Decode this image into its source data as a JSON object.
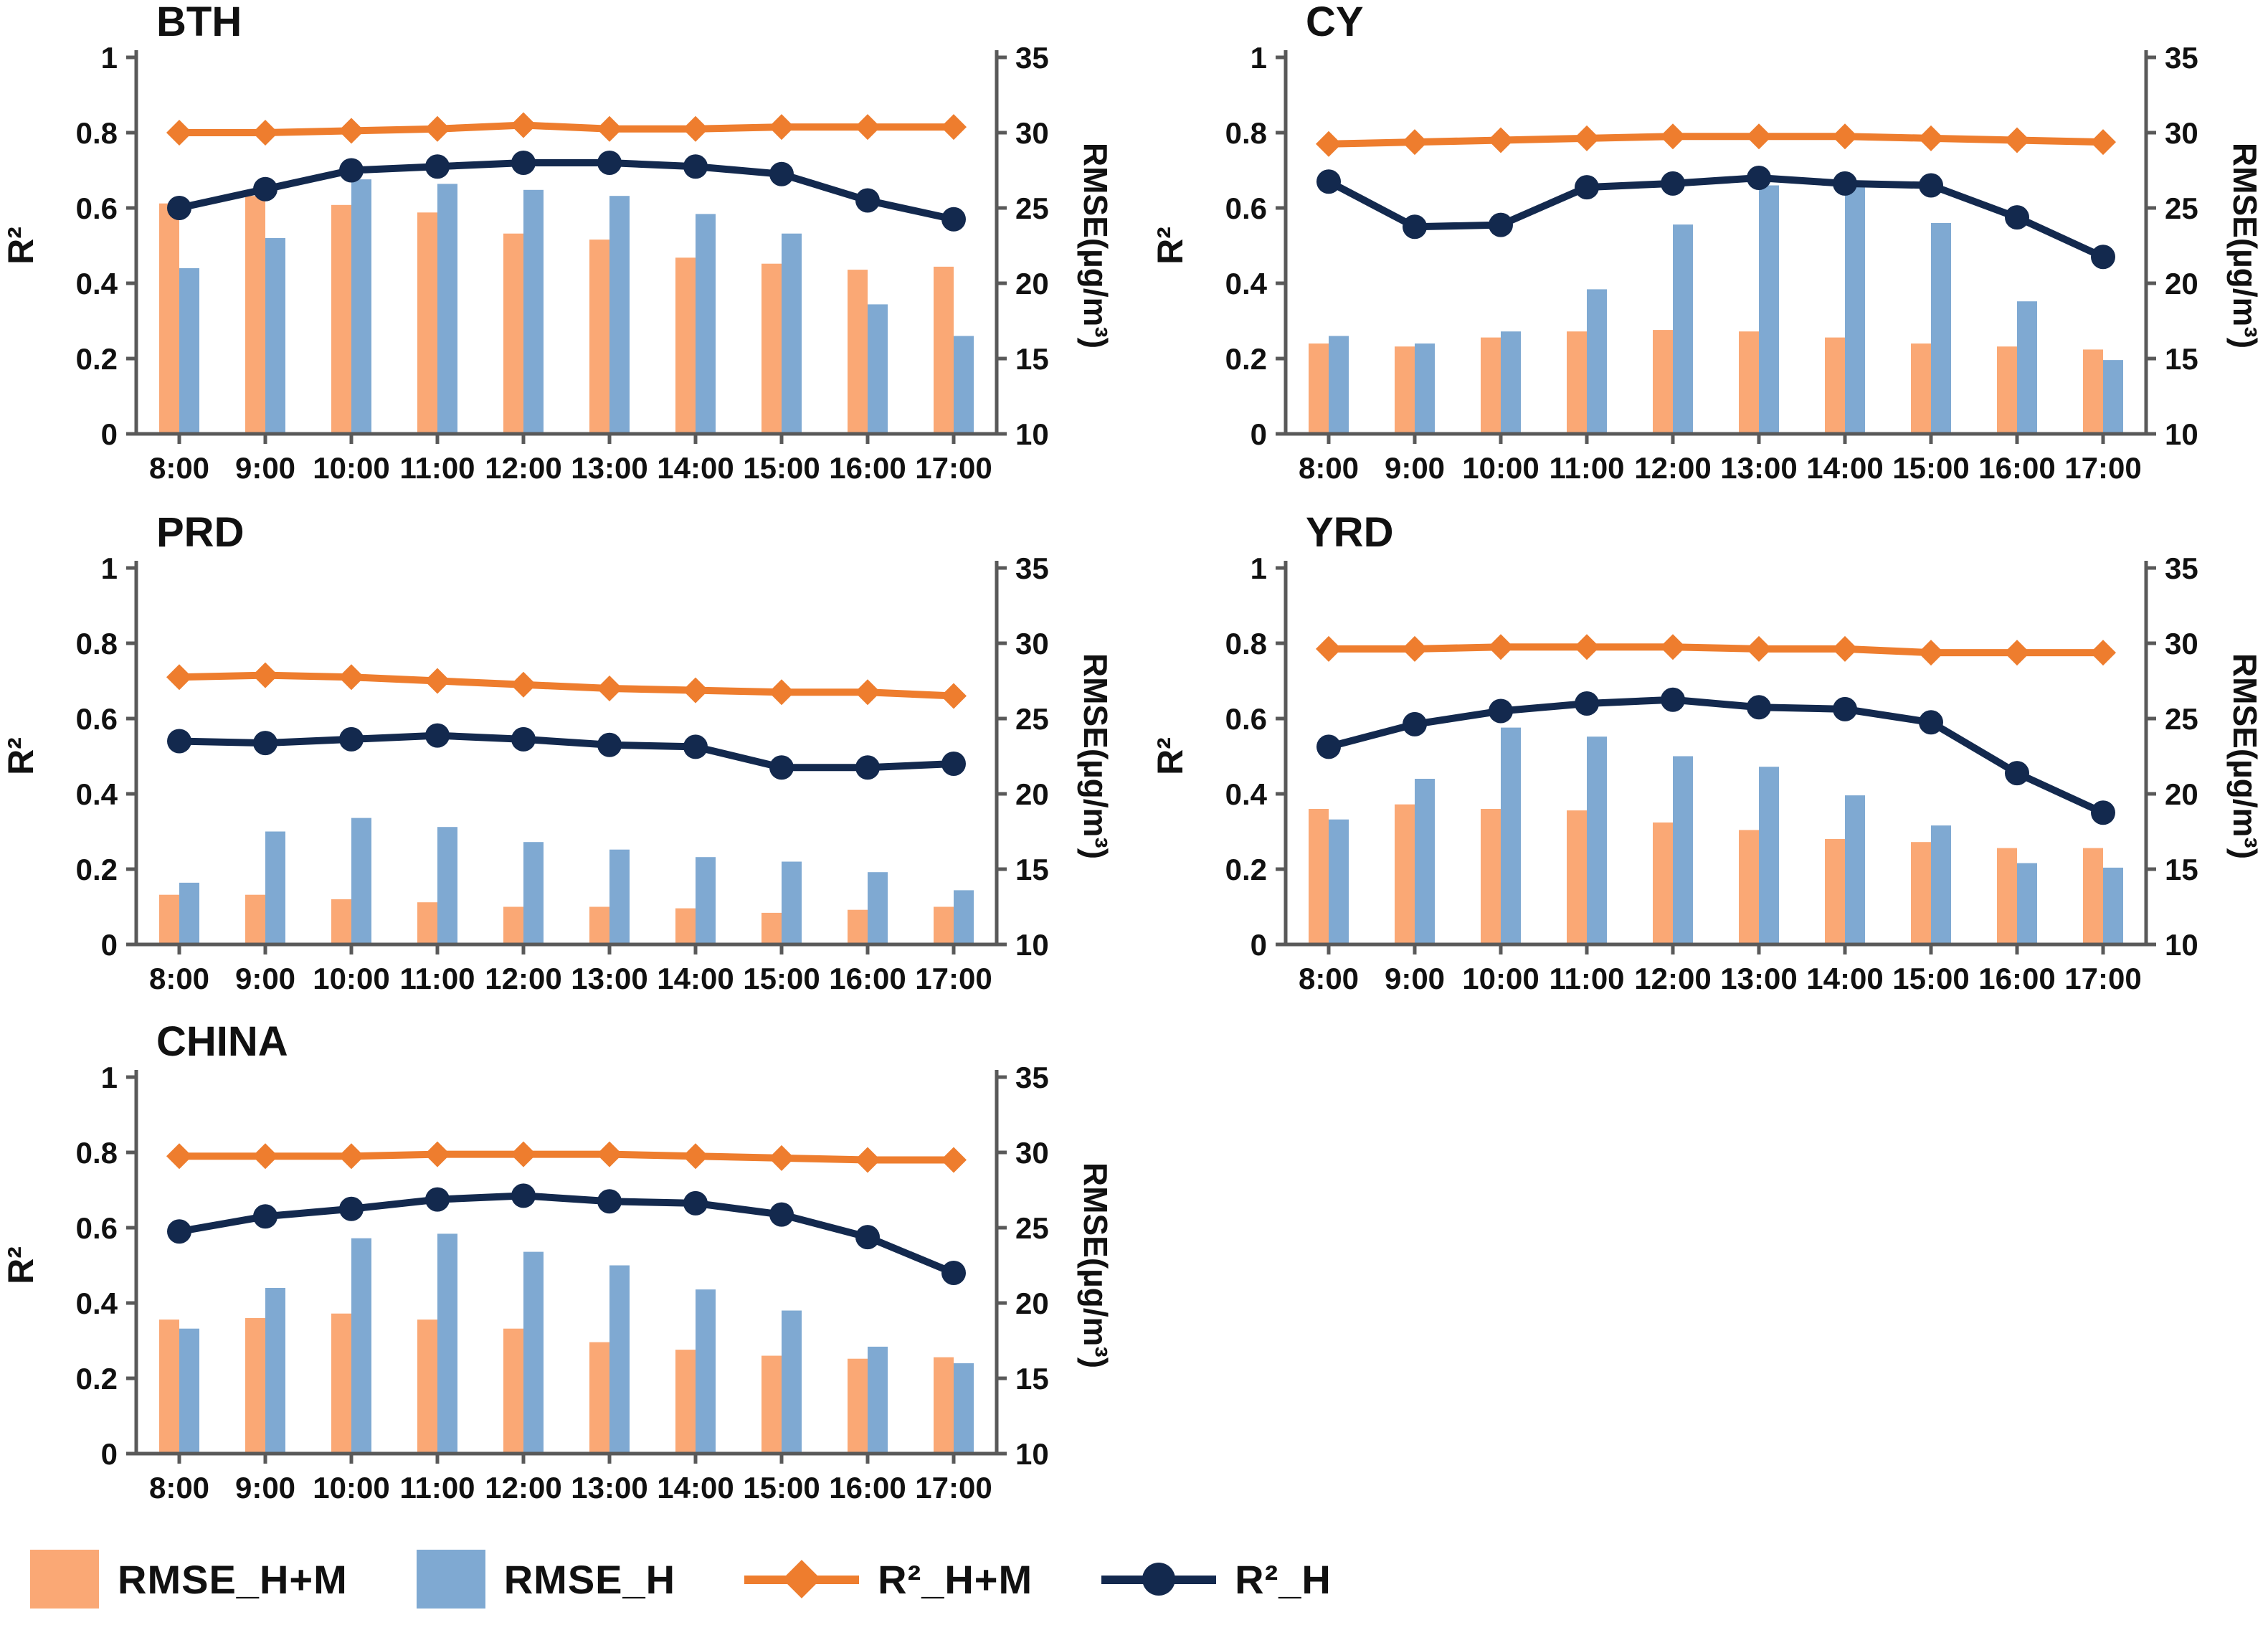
{
  "colors": {
    "rmse_hm": "#FAA875",
    "rmse_h": "#7FA9D2",
    "r2_hm": "#EE7D2E",
    "r2_h": "#13294E",
    "axis": "#595959",
    "text": "#111111"
  },
  "axes": {
    "left_label": "R²",
    "right_label": "RMSE(µg/m³)",
    "left_tick_values": [
      1,
      0.8,
      0.6,
      0.4,
      0.2,
      0
    ],
    "left_tick_labels": [
      "1",
      "0.8",
      "0.6",
      "0.4",
      "0.2",
      "0"
    ],
    "right_tick_values": [
      35,
      30,
      25,
      20,
      15,
      10
    ],
    "right_tick_labels": [
      "35",
      "30",
      "25",
      "20",
      "15",
      "10"
    ],
    "left_range": [
      0,
      1
    ],
    "right_range": [
      10,
      35
    ],
    "categories": [
      "8:00",
      "9:00",
      "10:00",
      "11:00",
      "12:00",
      "13:00",
      "14:00",
      "15:00",
      "16:00",
      "17:00"
    ]
  },
  "legend": {
    "items": [
      {
        "label": "RMSE_H+M",
        "kind": "bar",
        "color_key": "rmse_hm"
      },
      {
        "label": "RMSE_H",
        "kind": "bar",
        "color_key": "rmse_h"
      },
      {
        "label": "R²_H+M",
        "kind": "line-diamond",
        "color_key": "r2_hm"
      },
      {
        "label": "R²_H",
        "kind": "line-circle",
        "color_key": "r2_h"
      }
    ]
  },
  "chart_data": [
    {
      "type": "bar",
      "title": "BTH",
      "xlabel": "",
      "left_axis_label": "R²",
      "right_axis_label": "RMSE(µg/m³)",
      "left_ylim": [
        0,
        1
      ],
      "right_ylim": [
        10,
        35
      ],
      "grid": false,
      "categories": [
        "8:00",
        "9:00",
        "10:00",
        "11:00",
        "12:00",
        "13:00",
        "14:00",
        "15:00",
        "16:00",
        "17:00"
      ],
      "series": [
        {
          "name": "RMSE_H+M",
          "kind": "bar",
          "axis": "right",
          "values": [
            25.3,
            25.8,
            25.2,
            24.7,
            23.3,
            22.9,
            21.7,
            21.3,
            20.9,
            21.1
          ]
        },
        {
          "name": "RMSE_H",
          "kind": "bar",
          "axis": "right",
          "values": [
            21.0,
            23.0,
            26.9,
            26.6,
            26.2,
            25.8,
            24.6,
            23.3,
            18.6,
            16.5
          ]
        },
        {
          "name": "R²_H+M",
          "kind": "line",
          "marker": "diamond",
          "axis": "left",
          "values": [
            0.8,
            0.8,
            0.805,
            0.81,
            0.82,
            0.81,
            0.81,
            0.815,
            0.815,
            0.815
          ]
        },
        {
          "name": "R²_H",
          "kind": "line",
          "marker": "circle",
          "axis": "left",
          "values": [
            0.6,
            0.65,
            0.7,
            0.71,
            0.72,
            0.72,
            0.71,
            0.69,
            0.62,
            0.57
          ]
        }
      ]
    },
    {
      "type": "bar",
      "title": "CY",
      "xlabel": "",
      "left_axis_label": "R²",
      "right_axis_label": "RMSE(µg/m³)",
      "left_ylim": [
        0,
        1
      ],
      "right_ylim": [
        10,
        35
      ],
      "grid": false,
      "categories": [
        "8:00",
        "9:00",
        "10:00",
        "11:00",
        "12:00",
        "13:00",
        "14:00",
        "15:00",
        "16:00",
        "17:00"
      ],
      "series": [
        {
          "name": "RMSE_H+M",
          "kind": "bar",
          "axis": "right",
          "values": [
            16.0,
            15.8,
            16.4,
            16.8,
            16.9,
            16.8,
            16.4,
            16.0,
            15.8,
            15.6
          ]
        },
        {
          "name": "RMSE_H",
          "kind": "bar",
          "axis": "right",
          "values": [
            16.5,
            16.0,
            16.8,
            19.6,
            23.9,
            26.5,
            26.4,
            24.0,
            18.8,
            14.9
          ]
        },
        {
          "name": "R²_H+M",
          "kind": "line",
          "marker": "diamond",
          "axis": "left",
          "values": [
            0.77,
            0.775,
            0.78,
            0.785,
            0.79,
            0.79,
            0.79,
            0.785,
            0.78,
            0.775
          ]
        },
        {
          "name": "R²_H",
          "kind": "line",
          "marker": "circle",
          "axis": "left",
          "values": [
            0.67,
            0.55,
            0.555,
            0.655,
            0.665,
            0.68,
            0.665,
            0.66,
            0.575,
            0.47
          ]
        }
      ]
    },
    {
      "type": "bar",
      "title": "PRD",
      "xlabel": "",
      "left_axis_label": "R²",
      "right_axis_label": "RMSE(µg/m³)",
      "left_ylim": [
        0,
        1
      ],
      "right_ylim": [
        10,
        35
      ],
      "grid": false,
      "categories": [
        "8:00",
        "9:00",
        "10:00",
        "11:00",
        "12:00",
        "13:00",
        "14:00",
        "15:00",
        "16:00",
        "17:00"
      ],
      "series": [
        {
          "name": "RMSE_H+M",
          "kind": "bar",
          "axis": "right",
          "values": [
            13.3,
            13.3,
            13.0,
            12.8,
            12.5,
            12.5,
            12.4,
            12.1,
            12.3,
            12.5
          ]
        },
        {
          "name": "RMSE_H",
          "kind": "bar",
          "axis": "right",
          "values": [
            14.1,
            17.5,
            18.4,
            17.8,
            16.8,
            16.3,
            15.8,
            15.5,
            14.8,
            13.6
          ]
        },
        {
          "name": "R²_H+M",
          "kind": "line",
          "marker": "diamond",
          "axis": "left",
          "values": [
            0.71,
            0.715,
            0.71,
            0.7,
            0.69,
            0.68,
            0.675,
            0.67,
            0.67,
            0.66
          ]
        },
        {
          "name": "R²_H",
          "kind": "line",
          "marker": "circle",
          "axis": "left",
          "values": [
            0.54,
            0.535,
            0.545,
            0.555,
            0.545,
            0.53,
            0.525,
            0.47,
            0.47,
            0.48
          ]
        }
      ]
    },
    {
      "type": "bar",
      "title": "YRD",
      "xlabel": "",
      "left_axis_label": "R²",
      "right_axis_label": "RMSE(µg/m³)",
      "left_ylim": [
        0,
        1
      ],
      "right_ylim": [
        10,
        35
      ],
      "grid": false,
      "categories": [
        "8:00",
        "9:00",
        "10:00",
        "11:00",
        "12:00",
        "13:00",
        "14:00",
        "15:00",
        "16:00",
        "17:00"
      ],
      "series": [
        {
          "name": "RMSE_H+M",
          "kind": "bar",
          "axis": "right",
          "values": [
            19.0,
            19.3,
            19.0,
            18.9,
            18.1,
            17.6,
            17.0,
            16.8,
            16.4,
            16.4
          ]
        },
        {
          "name": "RMSE_H",
          "kind": "bar",
          "axis": "right",
          "values": [
            18.3,
            21.0,
            24.4,
            23.8,
            22.5,
            21.8,
            19.9,
            17.9,
            15.4,
            15.1
          ]
        },
        {
          "name": "R²_H+M",
          "kind": "line",
          "marker": "diamond",
          "axis": "left",
          "values": [
            0.785,
            0.785,
            0.79,
            0.79,
            0.79,
            0.785,
            0.785,
            0.775,
            0.775,
            0.775
          ]
        },
        {
          "name": "R²_H",
          "kind": "line",
          "marker": "circle",
          "axis": "left",
          "values": [
            0.525,
            0.585,
            0.62,
            0.64,
            0.65,
            0.63,
            0.625,
            0.59,
            0.455,
            0.35
          ]
        }
      ]
    },
    {
      "type": "bar",
      "title": "CHINA",
      "xlabel": "",
      "left_axis_label": "R²",
      "right_axis_label": "RMSE(µg/m³)",
      "left_ylim": [
        0,
        1
      ],
      "right_ylim": [
        10,
        35
      ],
      "grid": false,
      "categories": [
        "8:00",
        "9:00",
        "10:00",
        "11:00",
        "12:00",
        "13:00",
        "14:00",
        "15:00",
        "16:00",
        "17:00"
      ],
      "series": [
        {
          "name": "RMSE_H+M",
          "kind": "bar",
          "axis": "right",
          "values": [
            18.9,
            19.0,
            19.3,
            18.9,
            18.3,
            17.4,
            16.9,
            16.5,
            16.3,
            16.4
          ]
        },
        {
          "name": "RMSE_H",
          "kind": "bar",
          "axis": "right",
          "values": [
            18.3,
            21.0,
            24.3,
            24.6,
            23.4,
            22.5,
            20.9,
            19.5,
            17.1,
            16.0
          ]
        },
        {
          "name": "R²_H+M",
          "kind": "line",
          "marker": "diamond",
          "axis": "left",
          "values": [
            0.79,
            0.79,
            0.79,
            0.795,
            0.795,
            0.795,
            0.79,
            0.785,
            0.78,
            0.78
          ]
        },
        {
          "name": "R²_H",
          "kind": "line",
          "marker": "circle",
          "axis": "left",
          "values": [
            0.59,
            0.63,
            0.65,
            0.675,
            0.685,
            0.67,
            0.665,
            0.635,
            0.575,
            0.48
          ]
        }
      ]
    }
  ]
}
